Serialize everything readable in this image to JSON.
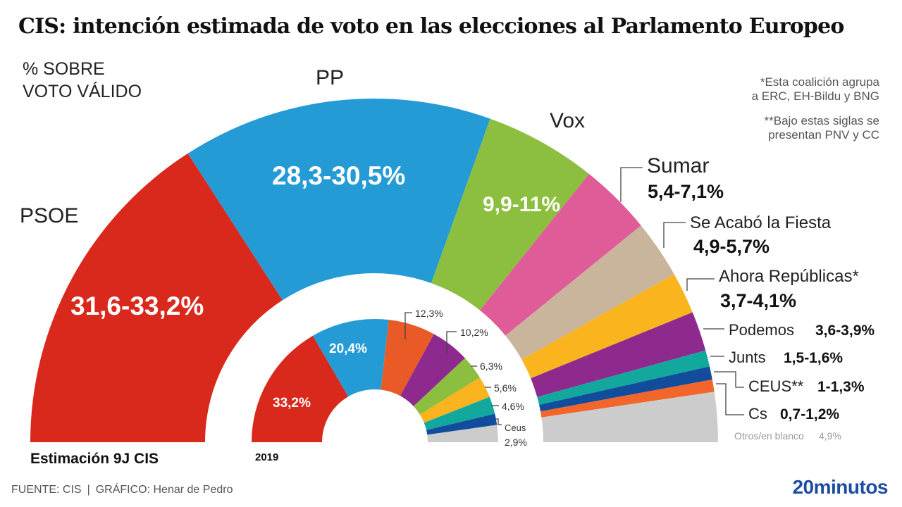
{
  "header": {
    "title": "CIS: intención estimada de voto en las elecciones al Parlamento Europeo",
    "subtitle_line1": "% SOBRE",
    "subtitle_line2": "VOTO VÁLIDO"
  },
  "notes": {
    "note1_line1": "*Esta coalición agrupa",
    "note1_line2": "a ERC, EH-Bildu y BNG",
    "note2_line1": "**Bajo estas siglas se",
    "note2_line2": "presentan PNV y CC"
  },
  "footer": {
    "source": "FUENTE: CIS",
    "separator": "|",
    "credit": "GRÁFICO: Henar de Pedro",
    "logo": "20minutos"
  },
  "chart_data": [
    {
      "type": "pie",
      "variant": "half-donut",
      "title": "Estimación 9J CIS",
      "unit": "% sobre voto válido",
      "categories": [
        "PSOE",
        "PP",
        "Vox",
        "Sumar",
        "Se Acabó la Fiesta",
        "Ahora Repúblicas*",
        "Podemos",
        "Junts",
        "CEUS**",
        "Cs",
        "Otros/en blanco"
      ],
      "ranges": [
        [
          31.6,
          33.2
        ],
        [
          28.3,
          30.5
        ],
        [
          9.9,
          11
        ],
        [
          5.4,
          7.1
        ],
        [
          4.9,
          5.7
        ],
        [
          3.7,
          4.1
        ],
        [
          3.6,
          3.9
        ],
        [
          1.5,
          1.6
        ],
        [
          1,
          1.3
        ],
        [
          0.7,
          1.2
        ],
        [
          4.9,
          4.9
        ]
      ],
      "labels": [
        "31,6-33,2%",
        "28,3-30,5%",
        "9,9-11%",
        "5,4-7,1%",
        "4,9-5,7%",
        "3,7-4,1%",
        "3,6-3,9%",
        "1,5-1,6%",
        "1-1,3%",
        "0,7-1,2%",
        "4,9%"
      ],
      "colors": [
        "#d9291c",
        "#259bd6",
        "#8cbf3f",
        "#e05c99",
        "#c8b59b",
        "#f9b41e",
        "#8e2a8e",
        "#12a89d",
        "#124c9c",
        "#f2652b",
        "#cccccc"
      ]
    },
    {
      "type": "pie",
      "variant": "half-donut",
      "title": "2019",
      "categories": [
        "PSOE",
        "PP",
        "Cs",
        "Podemos",
        "Vox",
        "Ahora Repúblicas",
        "Junts",
        "Ceus",
        "Otros"
      ],
      "values": [
        33.2,
        20.4,
        12.3,
        10.2,
        6.3,
        5.6,
        4.6,
        2.9,
        4.5
      ],
      "labels": [
        "33,2%",
        "20,4%",
        "12,3%",
        "10,2%",
        "6,3%",
        "5,6%",
        "4,6%",
        "2,9%",
        ""
      ],
      "callout_name": "Ceus",
      "colors": [
        "#d9291c",
        "#259bd6",
        "#e95a26",
        "#8e2a8e",
        "#8cbf3f",
        "#f9b41e",
        "#12a89d",
        "#124c9c",
        "#cccccc"
      ]
    }
  ]
}
